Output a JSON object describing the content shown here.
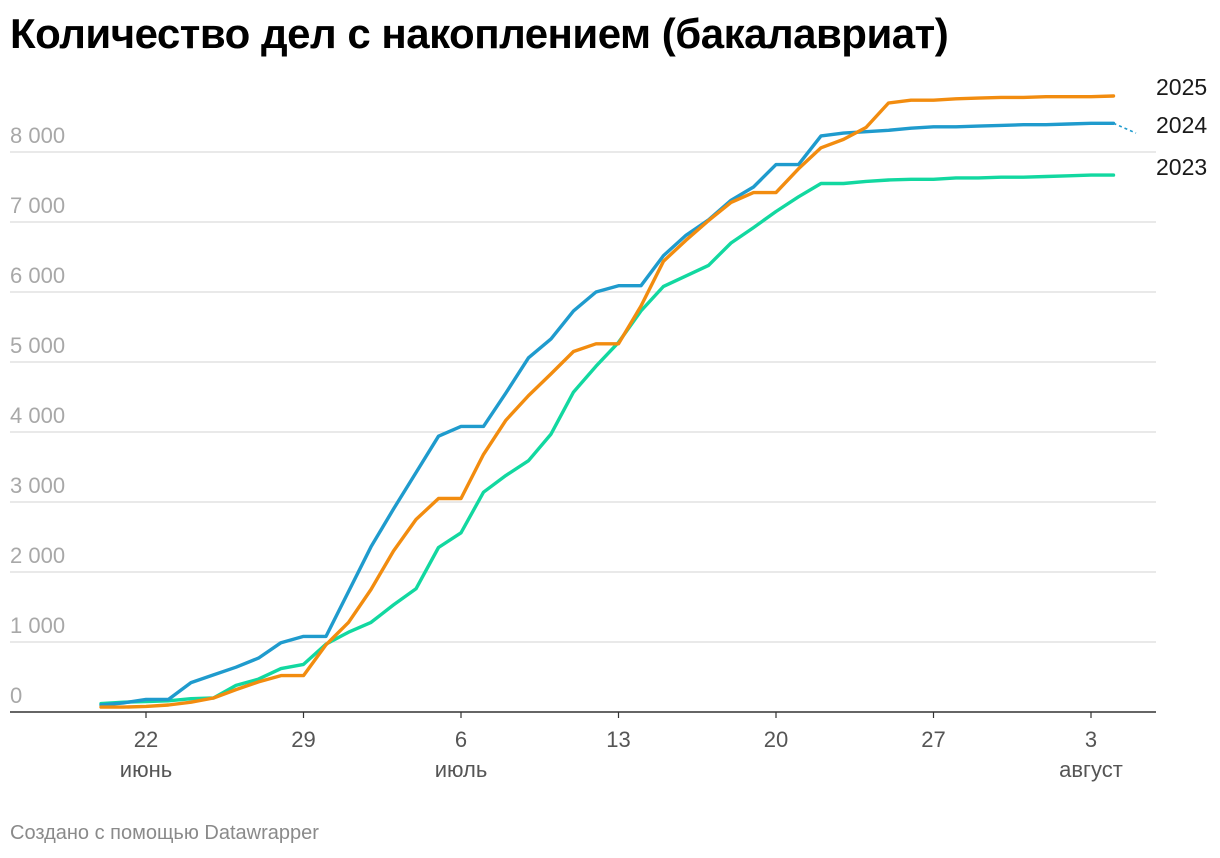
{
  "title": "Количество дел с накоплением (бакалавриат)",
  "footer": "Создано с помощью Datawrapper",
  "colors": {
    "2025": "#f28c0f",
    "2024": "#1f9bcd",
    "2023": "#12d8a0",
    "grid": "#dcdcdc",
    "axis": "#333333"
  },
  "chart_data": {
    "type": "line",
    "title": "Количество дел с накоплением (бакалавриат)",
    "xlabel": "",
    "ylabel": "",
    "ylim": [
      0,
      8600
    ],
    "xlim": [
      -1.5,
      49.5
    ],
    "grid": true,
    "legend": "labels at line ends (right)",
    "y_ticks": [
      {
        "value": 0,
        "label": "0"
      },
      {
        "value": 1000,
        "label": "1 000"
      },
      {
        "value": 2000,
        "label": "2 000"
      },
      {
        "value": 3000,
        "label": "3 000"
      },
      {
        "value": 4000,
        "label": "4 000"
      },
      {
        "value": 5000,
        "label": "5 000"
      },
      {
        "value": 6000,
        "label": "6 000"
      },
      {
        "value": 7000,
        "label": "7 000"
      },
      {
        "value": 8000,
        "label": "8 000"
      }
    ],
    "x_ticks": [
      {
        "x": 2,
        "day": "22",
        "month": "июнь"
      },
      {
        "x": 9,
        "day": "29",
        "month": ""
      },
      {
        "x": 16,
        "day": "6",
        "month": "июль"
      },
      {
        "x": 23,
        "day": "13",
        "month": ""
      },
      {
        "x": 30,
        "day": "20",
        "month": ""
      },
      {
        "x": 37,
        "day": "27",
        "month": ""
      },
      {
        "x": 44,
        "day": "3",
        "month": "август"
      }
    ],
    "x_start": 0,
    "series": [
      {
        "name": "2025",
        "values": [
          70,
          70,
          80,
          100,
          140,
          200,
          320,
          430,
          520,
          520,
          960,
          1280,
          1750,
          2300,
          2750,
          3050,
          3050,
          3680,
          4170,
          4520,
          4830,
          5150,
          5260,
          5260,
          5800,
          6440,
          6740,
          7020,
          7280,
          7420,
          7420,
          7760,
          8060,
          8180,
          8350,
          8700,
          8740,
          8740,
          8760,
          8770,
          8780,
          8780,
          8790,
          8790,
          8790,
          8800
        ]
      },
      {
        "name": "2024",
        "values": [
          100,
          130,
          180,
          180,
          420,
          530,
          640,
          770,
          990,
          1080,
          1080,
          1720,
          2360,
          2900,
          3420,
          3940,
          4080,
          4080,
          4560,
          5060,
          5330,
          5730,
          6000,
          6090,
          6090,
          6520,
          6810,
          7030,
          7310,
          7500,
          7820,
          7820,
          8230,
          8270,
          8290,
          8310,
          8340,
          8360,
          8360,
          8370,
          8380,
          8390,
          8390,
          8400,
          8410,
          8410,
          8270
        ]
      },
      {
        "name": "2023",
        "values": [
          120,
          140,
          150,
          160,
          190,
          200,
          380,
          470,
          620,
          680,
          970,
          1140,
          1280,
          1530,
          1760,
          2350,
          2560,
          3140,
          3380,
          3590,
          3970,
          4570,
          4940,
          5280,
          5730,
          6080,
          6230,
          6380,
          6700,
          6920,
          7150,
          7360,
          7550,
          7550,
          7580,
          7600,
          7610,
          7610,
          7630,
          7630,
          7640,
          7640,
          7650,
          7660,
          7670,
          7670
        ]
      }
    ]
  }
}
